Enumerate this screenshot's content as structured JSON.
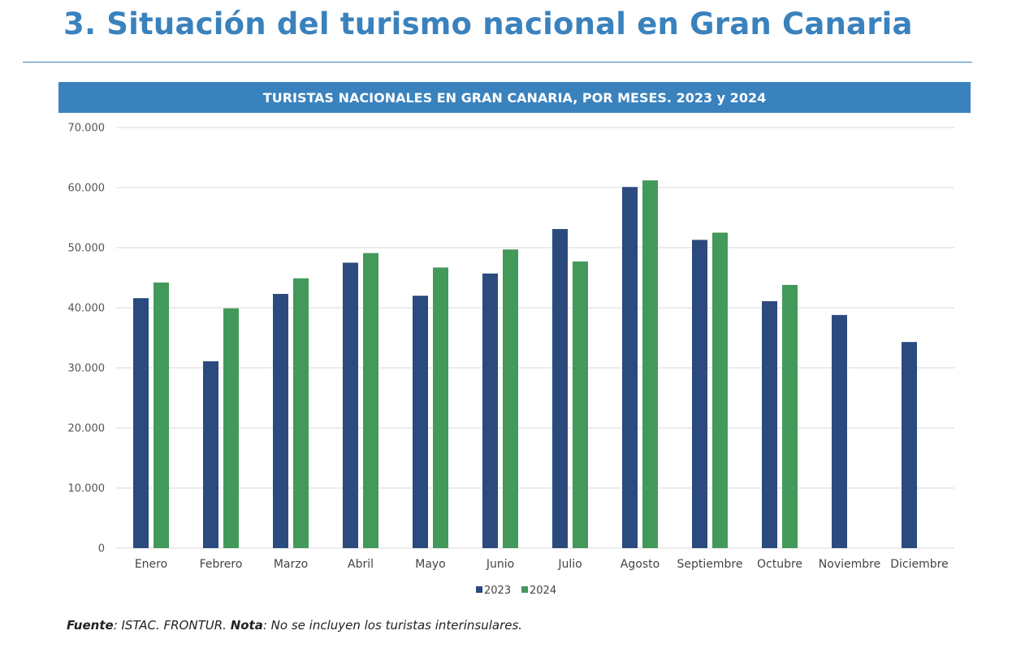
{
  "page": {
    "title": "3. Situación del turismo nacional en Gran Canaria"
  },
  "footnote": {
    "source_label": "Fuente",
    "source_text": ": ISTAC. FRONTUR. ",
    "note_label": "Nota",
    "note_text": ": No se incluyen los turistas interinsulares."
  },
  "colors": {
    "accent": "#3a82bd",
    "series_2023": "#2b4a7e",
    "series_2024": "#43995a",
    "grid": "#d9d9d9"
  },
  "chart_data": {
    "type": "bar",
    "title": "TURISTAS NACIONALES EN GRAN CANARIA, POR MESES. 2023 y 2024",
    "categories": [
      "Enero",
      "Febrero",
      "Marzo",
      "Abril",
      "Mayo",
      "Junio",
      "Julio",
      "Agosto",
      "Septiembre",
      "Octubre",
      "Noviembre",
      "Diciembre"
    ],
    "series": [
      {
        "name": "2023",
        "values": [
          41600,
          31100,
          42300,
          47500,
          42000,
          45700,
          53100,
          60100,
          51300,
          41100,
          38800,
          34300
        ]
      },
      {
        "name": "2024",
        "values": [
          44200,
          39900,
          44900,
          49100,
          46700,
          49700,
          47700,
          61200,
          52500,
          43800,
          null,
          null
        ]
      }
    ],
    "ylim": [
      0,
      70000
    ],
    "yticks": [
      0,
      10000,
      20000,
      30000,
      40000,
      50000,
      60000,
      70000
    ],
    "ytick_labels": [
      "0",
      "10.000",
      "20.000",
      "30.000",
      "40.000",
      "50.000",
      "60.000",
      "70.000"
    ],
    "grid": true,
    "legend_position": "bottom"
  }
}
